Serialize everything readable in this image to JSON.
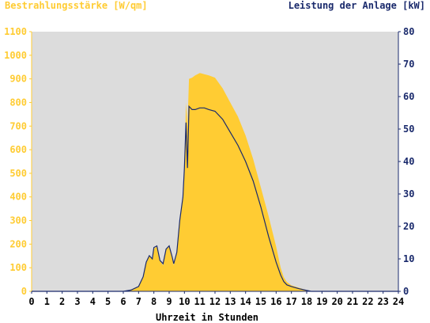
{
  "colors": {
    "background": "#ffffff",
    "plot_background": "#dcdcdc",
    "irradiance_fill": "#ffcc33",
    "power_line": "#1a2a6c",
    "left_axis_text": "#ffcc33",
    "right_axis_text": "#1a2a6c",
    "x_axis_text": "#000000"
  },
  "chart_data": {
    "type": "area",
    "title_left": "Bestrahlungsstärke [W/qm]",
    "title_right": "Leistung der Anlage [kW]",
    "xlabel": "Uhrzeit in Stunden",
    "grid": false,
    "x_range": [
      0,
      24
    ],
    "x_ticks": [
      "0",
      "1",
      "2",
      "3",
      "4",
      "5",
      "6",
      "7",
      "8",
      "9",
      "10",
      "11",
      "12",
      "13",
      "14",
      "15",
      "16",
      "17",
      "18",
      "19",
      "20",
      "21",
      "22",
      "23",
      "24"
    ],
    "y_left": {
      "range": [
        0,
        1100
      ],
      "ticks": [
        "0",
        "100",
        "200",
        "300",
        "400",
        "500",
        "600",
        "700",
        "800",
        "900",
        "1000",
        "1100"
      ]
    },
    "y_right": {
      "range": [
        0,
        80
      ],
      "ticks": [
        "0",
        "10",
        "20",
        "30",
        "40",
        "50",
        "60",
        "70",
        "80"
      ]
    },
    "series": [
      {
        "name": "Bestrahlungsstärke [W/qm]",
        "axis": "left",
        "style": "area",
        "x": [
          0,
          6.0,
          6.5,
          7.0,
          7.3,
          7.5,
          7.7,
          7.9,
          8.0,
          8.2,
          8.4,
          8.6,
          8.8,
          9.0,
          9.2,
          9.3,
          9.5,
          9.7,
          9.9,
          10.0,
          10.1,
          10.2,
          10.3,
          10.5,
          10.7,
          11.0,
          11.3,
          11.6,
          12.0,
          12.5,
          13.0,
          13.5,
          14.0,
          14.5,
          15.0,
          15.5,
          16.0,
          16.3,
          16.5,
          16.7,
          17.0,
          17.5,
          18.0,
          18.3,
          24
        ],
        "y": [
          0,
          0,
          5,
          20,
          60,
          120,
          150,
          140,
          180,
          190,
          130,
          110,
          180,
          190,
          140,
          110,
          160,
          300,
          400,
          520,
          800,
          700,
          900,
          905,
          915,
          925,
          920,
          915,
          905,
          860,
          800,
          740,
          660,
          560,
          440,
          320,
          190,
          100,
          60,
          40,
          25,
          15,
          5,
          0,
          0
        ]
      },
      {
        "name": "Leistung der Anlage [kW]",
        "axis": "right",
        "style": "line",
        "x": [
          0,
          6.0,
          6.5,
          7.0,
          7.3,
          7.5,
          7.7,
          7.9,
          8.0,
          8.2,
          8.4,
          8.6,
          8.8,
          9.0,
          9.2,
          9.3,
          9.5,
          9.7,
          9.9,
          10.0,
          10.1,
          10.2,
          10.3,
          10.5,
          10.7,
          11.0,
          11.3,
          11.6,
          12.0,
          12.5,
          13.0,
          13.5,
          14.0,
          14.5,
          15.0,
          15.5,
          16.0,
          16.3,
          16.5,
          16.7,
          17.0,
          17.5,
          18.0,
          18.3,
          24
        ],
        "y": [
          0,
          0,
          0.4,
          1.5,
          4.5,
          9,
          11,
          10,
          13.5,
          14,
          9.5,
          8.5,
          13,
          14,
          10.5,
          8.5,
          12,
          22,
          29,
          38,
          52,
          38,
          57,
          56,
          56,
          56.5,
          56.5,
          56,
          55.5,
          53,
          49,
          45,
          40,
          34,
          26,
          17,
          9,
          5,
          3,
          2,
          1.5,
          0.8,
          0.3,
          0,
          0
        ]
      }
    ]
  }
}
